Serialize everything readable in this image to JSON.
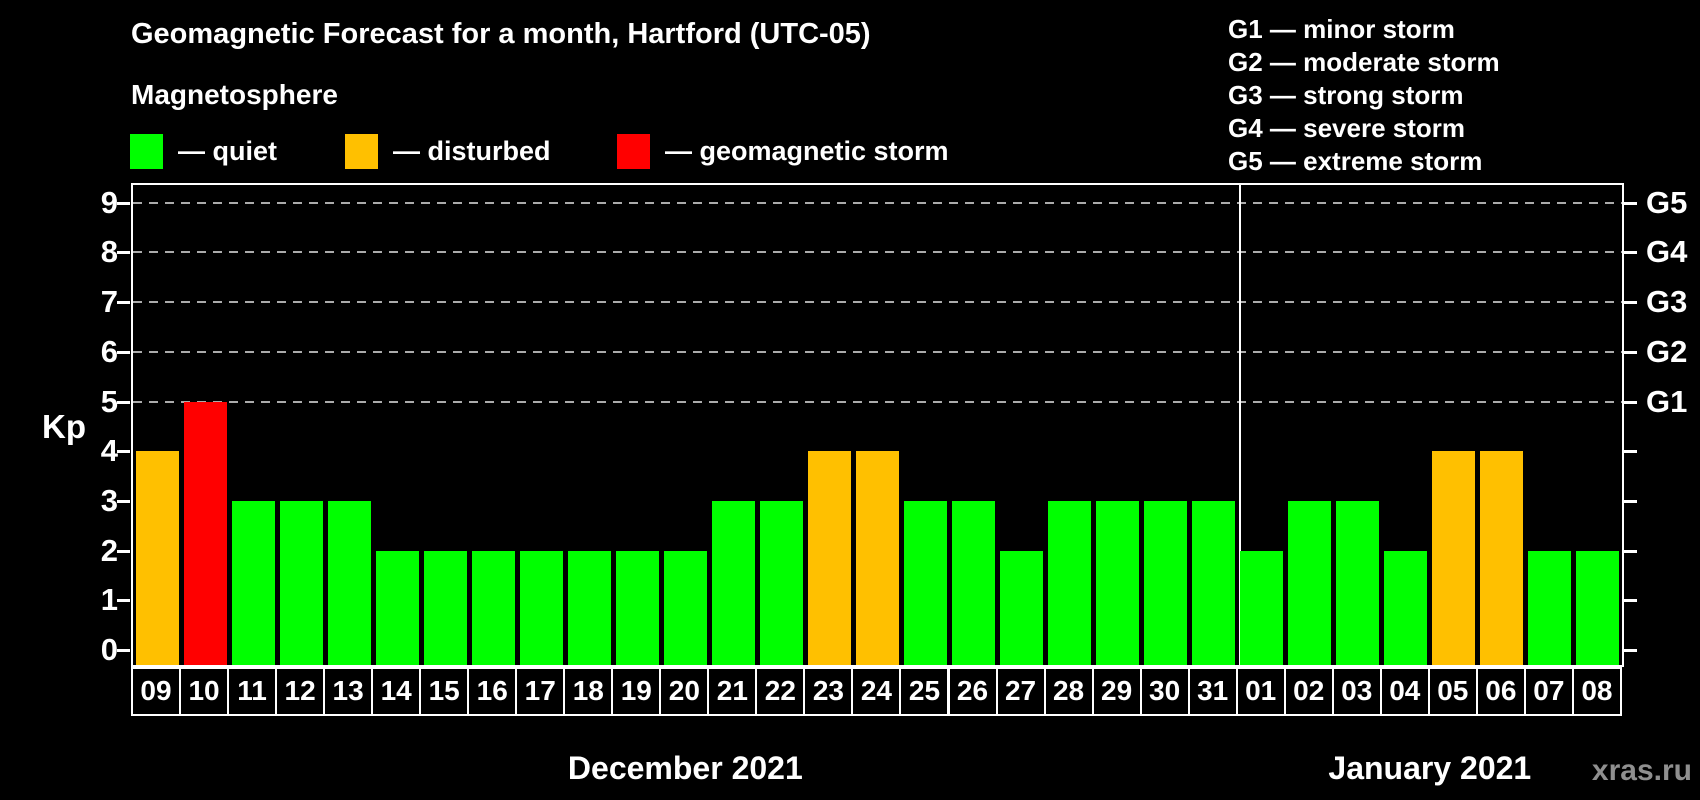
{
  "title": "Geomagnetic Forecast for a month, Hartford (UTC-05)",
  "subtitle": "Magnetosphere",
  "legend": {
    "items": [
      {
        "key": "quiet",
        "color": "#00FF00",
        "label": "— quiet"
      },
      {
        "key": "disturbed",
        "color": "#FFC000",
        "label": "— disturbed"
      },
      {
        "key": "storm",
        "color": "#FF0000",
        "label": "— geomagnetic storm"
      }
    ]
  },
  "g_legend": [
    {
      "code": "G1",
      "desc": "minor storm"
    },
    {
      "code": "G2",
      "desc": "moderate storm"
    },
    {
      "code": "G3",
      "desc": "strong storm"
    },
    {
      "code": "G4",
      "desc": "severe storm"
    },
    {
      "code": "G5",
      "desc": "extreme storm"
    }
  ],
  "watermark": "xras.ru",
  "chart_data": {
    "type": "bar",
    "title": "Geomagnetic Forecast for a month, Hartford (UTC-05)",
    "ylabel": "Kp",
    "ylim": [
      0,
      9
    ],
    "yticks": [
      0,
      1,
      2,
      3,
      4,
      5,
      6,
      7,
      8,
      9
    ],
    "gridlines": [
      5,
      6,
      7,
      8,
      9
    ],
    "grid": "dashed, upper storm levels only",
    "legend_position": "top",
    "right_axis": [
      {
        "label": "G1",
        "value": 5
      },
      {
        "label": "G2",
        "value": 6
      },
      {
        "label": "G3",
        "value": 7
      },
      {
        "label": "G4",
        "value": 8
      },
      {
        "label": "G5",
        "value": 9
      }
    ],
    "categories": [
      "09",
      "10",
      "11",
      "12",
      "13",
      "14",
      "15",
      "16",
      "17",
      "18",
      "19",
      "20",
      "21",
      "22",
      "23",
      "24",
      "25",
      "26",
      "27",
      "28",
      "29",
      "30",
      "31",
      "01",
      "02",
      "03",
      "04",
      "05",
      "06",
      "07",
      "08"
    ],
    "values": [
      4,
      5,
      3,
      3,
      3,
      2,
      2,
      2,
      2,
      2,
      2,
      2,
      3,
      3,
      4,
      4,
      3,
      3,
      2,
      3,
      3,
      3,
      3,
      2,
      3,
      3,
      2,
      4,
      4,
      2,
      2
    ],
    "colors": {
      "quiet": "#00FF00",
      "disturbed": "#FFC000",
      "storm": "#FF0000"
    },
    "color_rule": {
      "storm_min_kp": 5,
      "disturbed_min_kp": 4
    },
    "months": [
      {
        "label": "December 2021",
        "start": 0,
        "count": 23
      },
      {
        "label": "January 2021",
        "start": 23,
        "count": 8
      }
    ],
    "separator_after_index": 22,
    "background": "#000000",
    "frame_color": "#FFFFFF",
    "gridline_color": "#ABABAB",
    "watermark_color": "#8F8F8F"
  }
}
